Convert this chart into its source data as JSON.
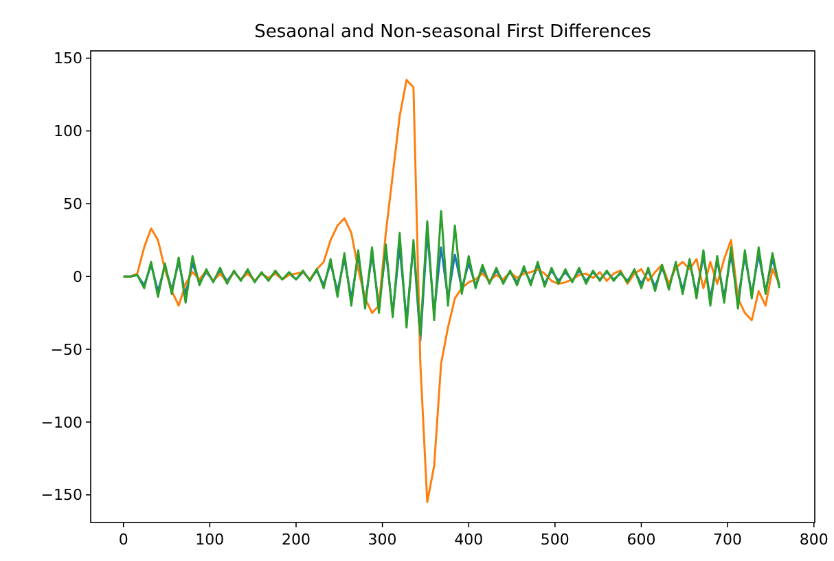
{
  "chart_data": {
    "type": "line",
    "title": "Sesaonal and Non-seasonal First Differences",
    "x": [
      0,
      8,
      16,
      24,
      32,
      40,
      48,
      56,
      64,
      72,
      80,
      88,
      96,
      104,
      112,
      120,
      128,
      136,
      144,
      152,
      160,
      168,
      176,
      184,
      192,
      200,
      208,
      216,
      224,
      232,
      240,
      248,
      256,
      264,
      272,
      280,
      288,
      296,
      304,
      312,
      320,
      328,
      336,
      344,
      352,
      360,
      368,
      376,
      384,
      392,
      400,
      408,
      416,
      424,
      432,
      440,
      448,
      456,
      464,
      472,
      480,
      488,
      496,
      504,
      512,
      520,
      528,
      536,
      544,
      552,
      560,
      568,
      576,
      584,
      592,
      600,
      608,
      616,
      624,
      632,
      640,
      648,
      656,
      664,
      672,
      680,
      688,
      696,
      704,
      712,
      720,
      728,
      736,
      744,
      752,
      760
    ],
    "series": [
      {
        "color": "#1f77b4",
        "values": [
          0,
          0,
          1,
          -6,
          8,
          -10,
          7,
          -9,
          10,
          -12,
          9,
          -4,
          3,
          -3,
          4,
          -3,
          3,
          -2,
          3,
          -3,
          2,
          -2,
          3,
          -2,
          2,
          -2,
          3,
          -2,
          4,
          -6,
          9,
          -10,
          12,
          -15,
          14,
          -18,
          15,
          -20,
          18,
          -25,
          20,
          -30,
          22,
          -44,
          30,
          -25,
          20,
          -15,
          15,
          -8,
          9,
          -6,
          5,
          -4,
          4,
          -3,
          3,
          -4,
          5,
          -4,
          7,
          -5,
          4,
          -3,
          3,
          -3,
          4,
          -3,
          3,
          -2,
          3,
          -2,
          2,
          -3,
          4,
          -5,
          4,
          -7,
          6,
          -6,
          8,
          -9,
          10,
          -12,
          14,
          -15,
          11,
          -14,
          15,
          -16,
          14,
          -12,
          15,
          -10,
          12,
          -6
        ]
      },
      {
        "color": "#ff7f0e",
        "values": [
          0,
          0,
          2,
          20,
          33,
          25,
          5,
          -10,
          -20,
          -5,
          3,
          -2,
          4,
          -3,
          2,
          -4,
          3,
          -2,
          2,
          -3,
          2,
          -1,
          2,
          -2,
          1,
          2,
          3,
          -2,
          5,
          10,
          25,
          35,
          40,
          30,
          5,
          -15,
          -25,
          -20,
          30,
          70,
          110,
          135,
          130,
          -60,
          -155,
          -130,
          -60,
          -35,
          -15,
          -8,
          -4,
          -2,
          2,
          -3,
          1,
          -2,
          3,
          -1,
          2,
          3,
          5,
          2,
          -3,
          -5,
          -4,
          -2,
          1,
          2,
          -1,
          3,
          -3,
          2,
          4,
          -5,
          2,
          5,
          -3,
          3,
          8,
          -5,
          6,
          10,
          5,
          12,
          -8,
          10,
          -5,
          12,
          25,
          -15,
          -25,
          -30,
          -10,
          -20,
          5,
          -5
        ]
      },
      {
        "color": "#2ca02c",
        "values": [
          0,
          0,
          1,
          -8,
          10,
          -14,
          9,
          -12,
          13,
          -18,
          14,
          -6,
          5,
          -4,
          6,
          -5,
          4,
          -3,
          5,
          -4,
          3,
          -3,
          4,
          -2,
          3,
          -2,
          4,
          -3,
          5,
          -8,
          12,
          -14,
          16,
          -20,
          18,
          -22,
          20,
          -25,
          22,
          -28,
          30,
          -35,
          25,
          -40,
          38,
          -30,
          45,
          -20,
          35,
          -12,
          14,
          -8,
          8,
          -5,
          6,
          -5,
          4,
          -6,
          7,
          -6,
          10,
          -7,
          6,
          -5,
          5,
          -4,
          6,
          -5,
          4,
          -3,
          4,
          -3,
          3,
          -4,
          5,
          -8,
          6,
          -10,
          8,
          -9,
          10,
          -12,
          12,
          -15,
          18,
          -20,
          14,
          -18,
          20,
          -22,
          18,
          -15,
          20,
          -12,
          16,
          -8
        ]
      }
    ],
    "xlim": [
      -38,
      801
    ],
    "xticks": [
      0,
      100,
      200,
      300,
      400,
      500,
      600,
      700,
      800
    ],
    "ylim": [
      -169,
      155
    ],
    "yticks": [
      -150,
      -100,
      -50,
      0,
      50,
      100,
      150
    ],
    "grid": false
  }
}
